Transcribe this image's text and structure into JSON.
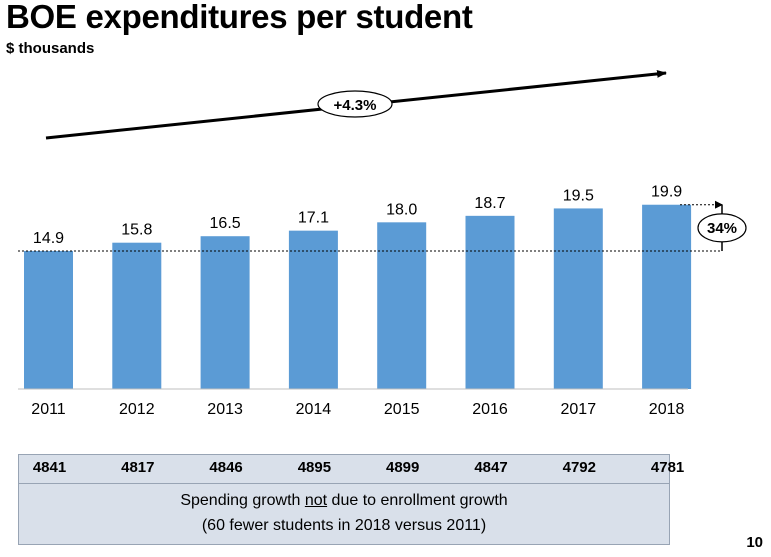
{
  "title": "BOE expenditures per student",
  "subtitle": "$ thousands",
  "chart_data": {
    "type": "bar",
    "title": "BOE expenditures per student",
    "subtitle": "$ thousands",
    "categories": [
      "2011",
      "2012",
      "2013",
      "2014",
      "2015",
      "2016",
      "2017",
      "2018"
    ],
    "values": [
      14.9,
      15.8,
      16.5,
      17.1,
      18.0,
      18.7,
      19.5,
      19.9
    ],
    "data_labels": [
      "14.9",
      "15.8",
      "16.5",
      "17.1",
      "18.0",
      "18.7",
      "19.5",
      "19.9"
    ],
    "ylim": [
      0,
      21
    ],
    "color": "#5b9bd5",
    "grid": false,
    "annotations": {
      "cagr_label": "+4.3%",
      "growth_label": "34%"
    }
  },
  "enrollment": {
    "values": [
      "4841",
      "4817",
      "4846",
      "4895",
      "4899",
      "4847",
      "4792",
      "4781"
    ]
  },
  "note": {
    "line1_before": "Spending growth ",
    "line1_emph": "not",
    "line1_after": " due to enrollment growth",
    "line2": "(60 fewer students in 2018 versus 2011)"
  },
  "page_number": "10"
}
